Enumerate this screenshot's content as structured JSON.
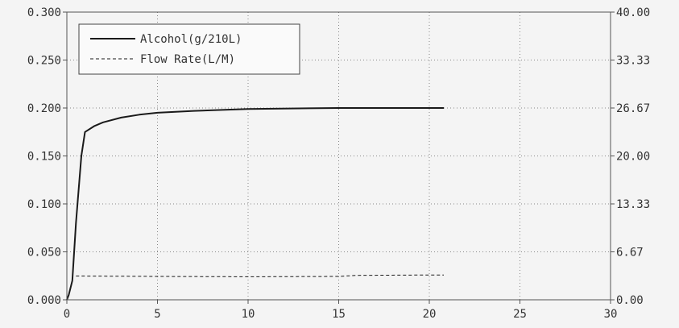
{
  "chart_data": {
    "type": "line",
    "title": "",
    "xlabel": "",
    "ylabel": "",
    "grid": true,
    "legend_placement": "top-left",
    "xlim": [
      0,
      30
    ],
    "ylim_left": [
      0,
      0.3
    ],
    "ylim_right": [
      0,
      40
    ],
    "x_ticks": [
      "0",
      "5",
      "10",
      "15",
      "20",
      "25",
      "30"
    ],
    "y_left_ticks": [
      "0.000",
      "0.050",
      "0.100",
      "0.150",
      "0.200",
      "0.250",
      "0.300"
    ],
    "y_right_ticks": [
      "0.00",
      "6.67",
      "13.33",
      "20.00",
      "26.67",
      "33.33",
      "40.00"
    ],
    "series": [
      {
        "name": "Alcohol(g/210L)",
        "axis": "left",
        "style": "solid",
        "color": "#1a1a1a",
        "x": [
          0.0,
          0.1,
          0.3,
          0.5,
          0.8,
          1.0,
          1.5,
          2.0,
          3.0,
          4.0,
          5.0,
          7.0,
          10.0,
          15.0,
          20.0,
          20.8
        ],
        "y": [
          0.0,
          0.005,
          0.02,
          0.08,
          0.15,
          0.175,
          0.181,
          0.185,
          0.19,
          0.193,
          0.195,
          0.197,
          0.199,
          0.2,
          0.2,
          0.2
        ]
      },
      {
        "name": "Flow Rate(L/M)",
        "axis": "right",
        "style": "dashed",
        "color": "#1a1a1a",
        "x": [
          0.5,
          5,
          10,
          15,
          16,
          20,
          20.8
        ],
        "y": [
          3.3,
          3.25,
          3.2,
          3.25,
          3.4,
          3.45,
          3.45
        ]
      }
    ]
  }
}
